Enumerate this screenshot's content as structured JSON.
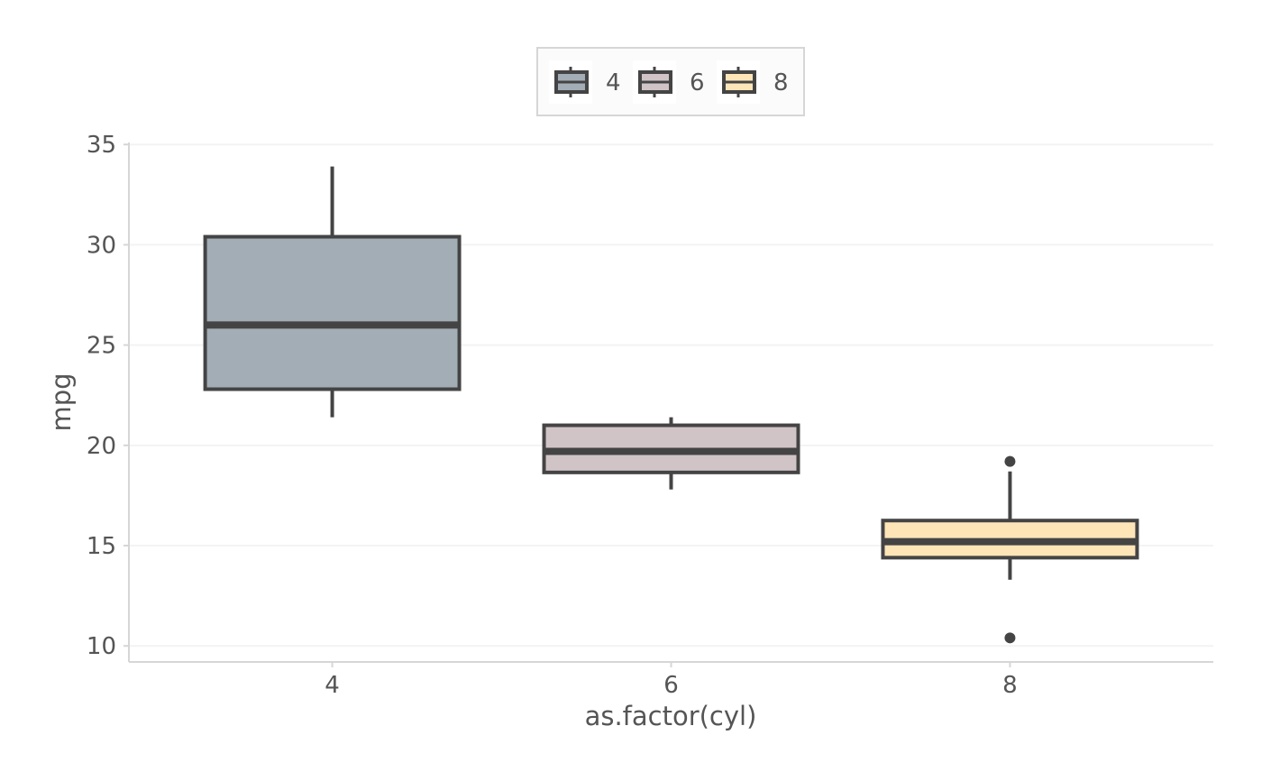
{
  "chart_data": {
    "type": "boxplot",
    "title": "",
    "xlabel": "as.factor(cyl)",
    "ylabel": "mpg",
    "ylim": [
      9.2,
      35.1
    ],
    "y_ticks": [
      10,
      15,
      20,
      25,
      30,
      35
    ],
    "grid": "horizontal",
    "legend_position": "top",
    "categories": [
      "4",
      "6",
      "8"
    ],
    "series": [
      {
        "name": "4",
        "color": "#a3adb5",
        "min": 21.4,
        "q1": 22.8,
        "median": 26.0,
        "q3": 30.4,
        "max": 33.9,
        "outliers": []
      },
      {
        "name": "6",
        "color": "#d1c4c7",
        "min": 17.8,
        "q1": 18.65,
        "median": 19.7,
        "q3": 21.0,
        "max": 21.4,
        "outliers": []
      },
      {
        "name": "8",
        "color": "#fde5b8",
        "min": 13.3,
        "q1": 14.4,
        "median": 15.2,
        "q3": 16.25,
        "max": 18.7,
        "outliers": [
          19.2,
          10.4
        ]
      }
    ],
    "stroke_color": "#444444"
  }
}
